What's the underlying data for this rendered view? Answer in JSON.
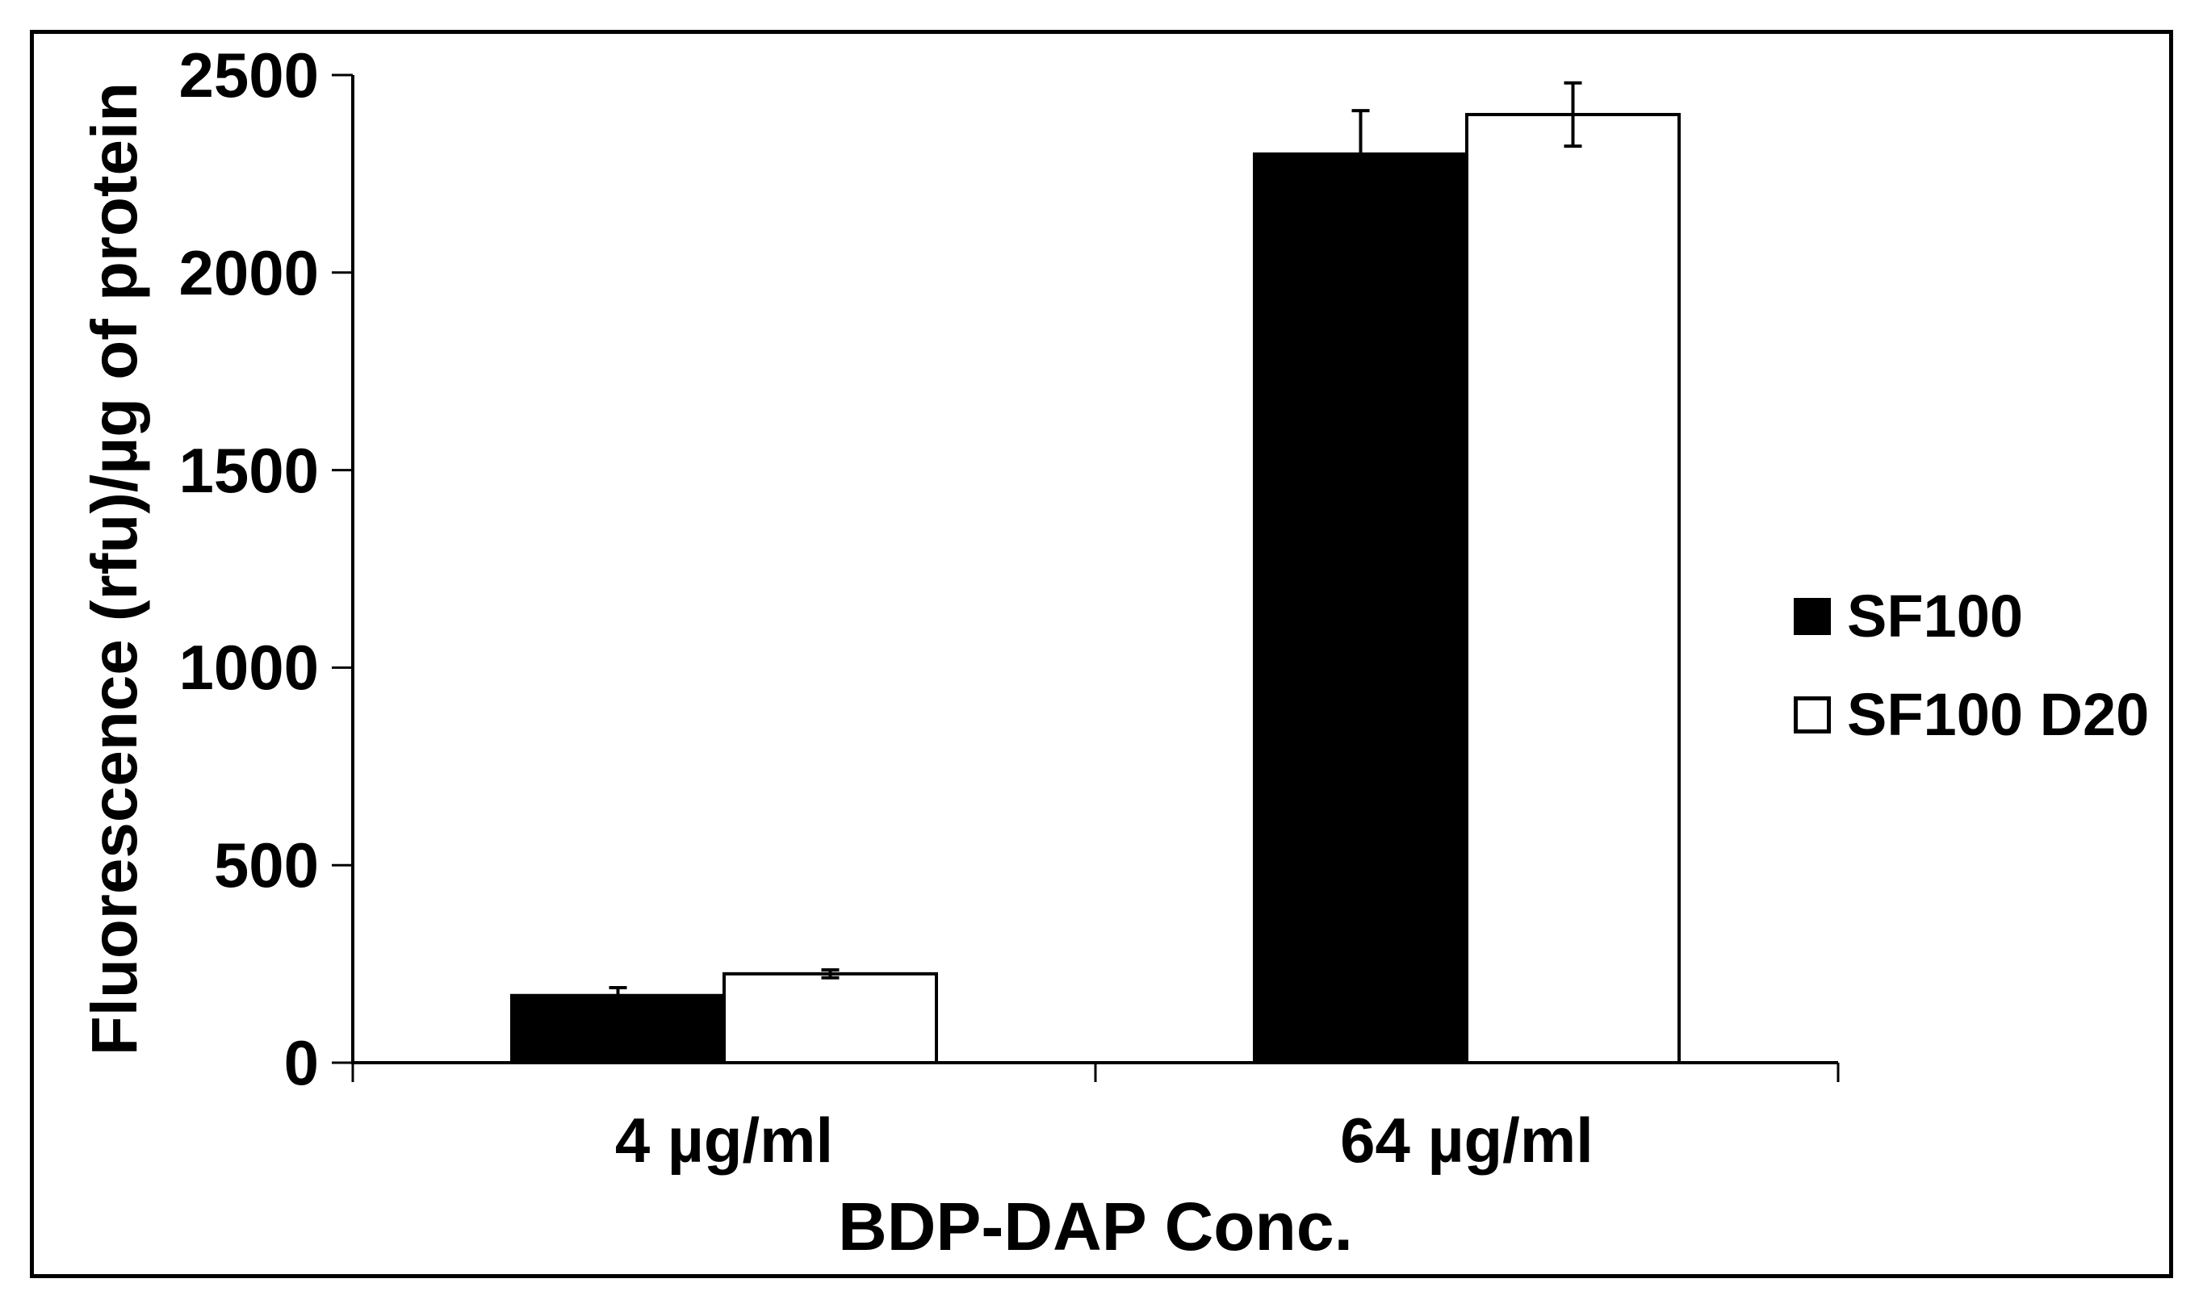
{
  "chart_data": {
    "type": "bar",
    "title": "",
    "categories": [
      "4 µg/ml",
      "64 µg/ml"
    ],
    "series": [
      {
        "name": "SF100",
        "marker": "filled-square",
        "fill": "#000000",
        "values": [
          170,
          2300
        ],
        "errors": [
          20,
          110
        ]
      },
      {
        "name": "SF100 D20",
        "marker": "open-square",
        "fill": "#ffffff",
        "values": [
          225,
          2400
        ],
        "errors": [
          10,
          80
        ]
      }
    ],
    "xlabel": "BDP-DAP Conc.",
    "ylabel": "Fluorescence (rfu)/µg of protein",
    "ylim": [
      0,
      2500
    ],
    "yticks": [
      0,
      500,
      1000,
      1500,
      2000,
      2500
    ],
    "grid": false,
    "legend_position": "right-middle",
    "axis_color": "#000000",
    "background": "#ffffff",
    "frame_color": "#000000"
  }
}
